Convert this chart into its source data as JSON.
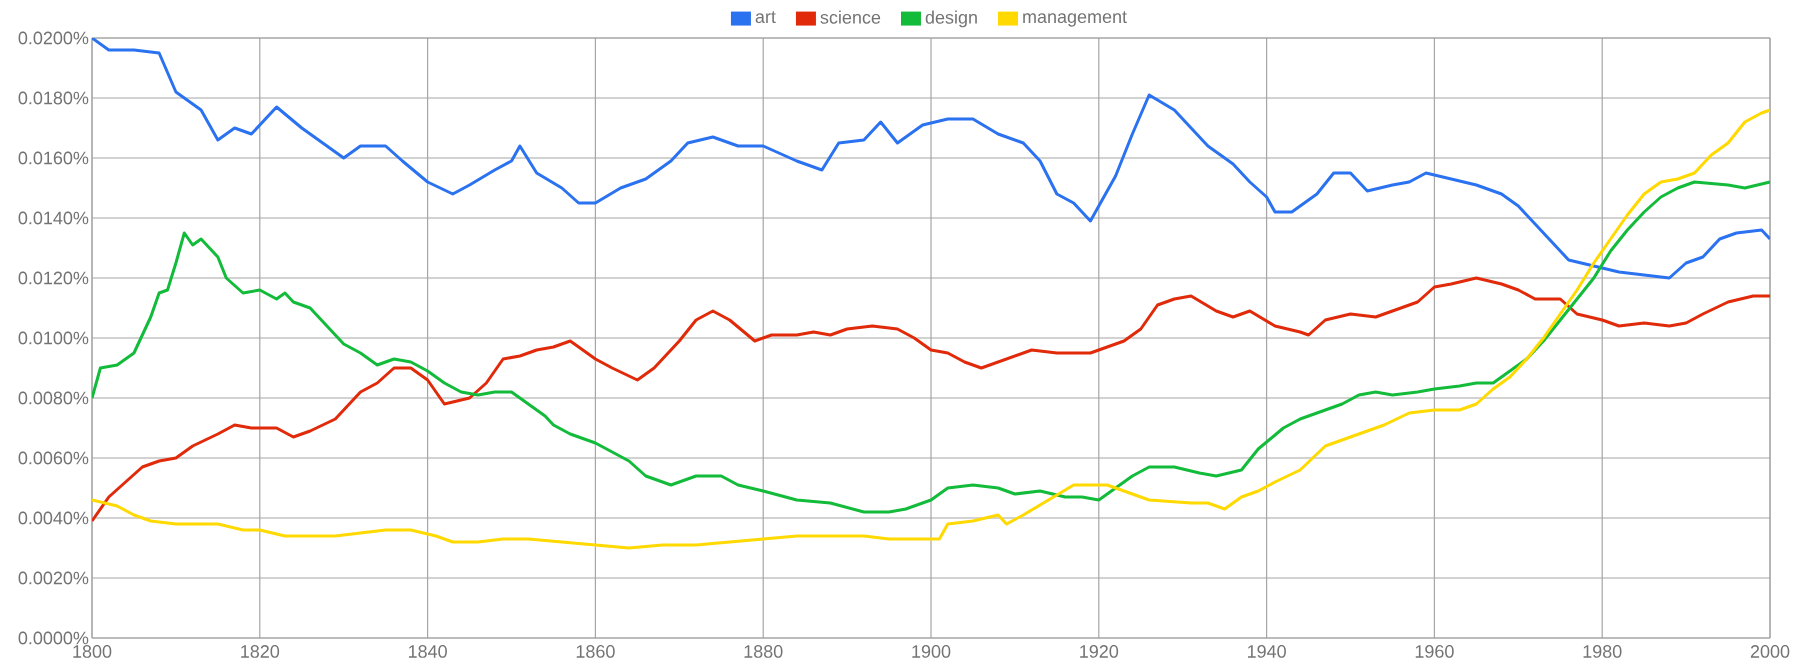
{
  "chart_data": {
    "type": "line",
    "legend": "top",
    "grid": true,
    "marker": "none",
    "line_style": "solid",
    "xlim": [
      1800,
      2000
    ],
    "ylim": [
      0,
      0.02
    ],
    "xticks": [
      1800,
      1820,
      1840,
      1860,
      1880,
      1900,
      1920,
      1940,
      1960,
      1980,
      2000
    ],
    "yticks": [
      {
        "value": 0,
        "label": "0.0000%"
      },
      {
        "value": 0.002,
        "label": "0.0020%"
      },
      {
        "value": 0.004,
        "label": "0.0040%"
      },
      {
        "value": 0.006,
        "label": "0.0060%"
      },
      {
        "value": 0.008,
        "label": "0.0080%"
      },
      {
        "value": 0.01,
        "label": "0.0100%"
      },
      {
        "value": 0.012,
        "label": "0.0120%"
      },
      {
        "value": 0.014,
        "label": "0.0140%"
      },
      {
        "value": 0.016,
        "label": "0.0160%"
      },
      {
        "value": 0.018,
        "label": "0.0180%"
      },
      {
        "value": 0.02,
        "label": "0.0200%"
      }
    ],
    "series": [
      {
        "name": "art",
        "color": "#2a72f0",
        "x": [
          1800,
          1802,
          1805,
          1808,
          1810,
          1813,
          1815,
          1817,
          1819,
          1822,
          1825,
          1828,
          1830,
          1832,
          1835,
          1837,
          1840,
          1843,
          1845,
          1848,
          1850,
          1851,
          1853,
          1856,
          1858,
          1860,
          1863,
          1866,
          1869,
          1871,
          1874,
          1877,
          1880,
          1884,
          1887,
          1889,
          1892,
          1894,
          1896,
          1899,
          1902,
          1905,
          1908,
          1911,
          1913,
          1915,
          1917,
          1919,
          1922,
          1924,
          1926,
          1929,
          1931,
          1933,
          1936,
          1938,
          1940,
          1941,
          1943,
          1946,
          1948,
          1950,
          1952,
          1955,
          1957,
          1959,
          1962,
          1965,
          1968,
          1970,
          1972,
          1974,
          1976,
          1979,
          1982,
          1985,
          1988,
          1990,
          1992,
          1994,
          1996,
          1999,
          2000
        ],
        "values": [
          0.02,
          0.0196,
          0.0196,
          0.0195,
          0.0182,
          0.0176,
          0.0166,
          0.017,
          0.0168,
          0.0177,
          0.017,
          0.0164,
          0.016,
          0.0164,
          0.0164,
          0.0159,
          0.0152,
          0.0148,
          0.0151,
          0.0156,
          0.0159,
          0.0164,
          0.0155,
          0.015,
          0.0145,
          0.0145,
          0.015,
          0.0153,
          0.0159,
          0.0165,
          0.0167,
          0.0164,
          0.0164,
          0.0159,
          0.0156,
          0.0165,
          0.0166,
          0.0172,
          0.0165,
          0.0171,
          0.0173,
          0.0173,
          0.0168,
          0.0165,
          0.0159,
          0.0148,
          0.0145,
          0.0139,
          0.0154,
          0.0168,
          0.0181,
          0.0176,
          0.017,
          0.0164,
          0.0158,
          0.0152,
          0.0147,
          0.0142,
          0.0142,
          0.0148,
          0.0155,
          0.0155,
          0.0149,
          0.0151,
          0.0152,
          0.0155,
          0.0153,
          0.0151,
          0.0148,
          0.0144,
          0.0138,
          0.0132,
          0.0126,
          0.0124,
          0.0122,
          0.0121,
          0.012,
          0.0125,
          0.0127,
          0.0133,
          0.0135,
          0.0136,
          0.0133
        ]
      },
      {
        "name": "science",
        "color": "#e02a0a",
        "x": [
          1800,
          1802,
          1804,
          1806,
          1808,
          1810,
          1812,
          1815,
          1817,
          1819,
          1822,
          1824,
          1826,
          1829,
          1832,
          1834,
          1836,
          1838,
          1840,
          1842,
          1845,
          1847,
          1849,
          1851,
          1853,
          1855,
          1857,
          1860,
          1862,
          1865,
          1867,
          1870,
          1872,
          1874,
          1876,
          1879,
          1881,
          1884,
          1886,
          1888,
          1890,
          1893,
          1896,
          1898,
          1900,
          1902,
          1904,
          1906,
          1909,
          1912,
          1915,
          1917,
          1919,
          1921,
          1923,
          1925,
          1927,
          1929,
          1931,
          1934,
          1936,
          1938,
          1941,
          1944,
          1945,
          1947,
          1950,
          1953,
          1955,
          1958,
          1960,
          1962,
          1965,
          1968,
          1970,
          1972,
          1975,
          1977,
          1980,
          1982,
          1985,
          1988,
          1990,
          1992,
          1995,
          1998,
          2000
        ],
        "values": [
          0.0039,
          0.0047,
          0.0052,
          0.0057,
          0.0059,
          0.006,
          0.0064,
          0.0068,
          0.0071,
          0.007,
          0.007,
          0.0067,
          0.0069,
          0.0073,
          0.0082,
          0.0085,
          0.009,
          0.009,
          0.0086,
          0.0078,
          0.008,
          0.0085,
          0.0093,
          0.0094,
          0.0096,
          0.0097,
          0.0099,
          0.0093,
          0.009,
          0.0086,
          0.009,
          0.0099,
          0.0106,
          0.0109,
          0.0106,
          0.0099,
          0.0101,
          0.0101,
          0.0102,
          0.0101,
          0.0103,
          0.0104,
          0.0103,
          0.01,
          0.0096,
          0.0095,
          0.0092,
          0.009,
          0.0093,
          0.0096,
          0.0095,
          0.0095,
          0.0095,
          0.0097,
          0.0099,
          0.0103,
          0.0111,
          0.0113,
          0.0114,
          0.0109,
          0.0107,
          0.0109,
          0.0104,
          0.0102,
          0.0101,
          0.0106,
          0.0108,
          0.0107,
          0.0109,
          0.0112,
          0.0117,
          0.0118,
          0.012,
          0.0118,
          0.0116,
          0.0113,
          0.0113,
          0.0108,
          0.0106,
          0.0104,
          0.0105,
          0.0104,
          0.0105,
          0.0108,
          0.0112,
          0.0114,
          0.0114
        ]
      },
      {
        "name": "design",
        "color": "#13bb3a",
        "x": [
          1800,
          1801,
          1803,
          1805,
          1807,
          1808,
          1809,
          1810,
          1811,
          1812,
          1813,
          1815,
          1816,
          1818,
          1820,
          1822,
          1823,
          1824,
          1826,
          1828,
          1830,
          1832,
          1834,
          1836,
          1838,
          1840,
          1842,
          1844,
          1846,
          1848,
          1850,
          1852,
          1854,
          1855,
          1857,
          1860,
          1862,
          1864,
          1866,
          1869,
          1872,
          1875,
          1877,
          1880,
          1884,
          1888,
          1892,
          1895,
          1897,
          1900,
          1902,
          1905,
          1908,
          1910,
          1913,
          1916,
          1918,
          1920,
          1922,
          1924,
          1926,
          1929,
          1932,
          1934,
          1937,
          1939,
          1942,
          1944,
          1946,
          1949,
          1951,
          1953,
          1955,
          1958,
          1960,
          1963,
          1965,
          1967,
          1969,
          1971,
          1973,
          1975,
          1977,
          1979,
          1981,
          1983,
          1985,
          1987,
          1989,
          1991,
          1995,
          1997,
          2000
        ],
        "values": [
          0.008,
          0.009,
          0.0091,
          0.0095,
          0.0107,
          0.0115,
          0.0116,
          0.0125,
          0.0135,
          0.0131,
          0.0133,
          0.0127,
          0.012,
          0.0115,
          0.0116,
          0.0113,
          0.0115,
          0.0112,
          0.011,
          0.0104,
          0.0098,
          0.0095,
          0.0091,
          0.0093,
          0.0092,
          0.0089,
          0.0085,
          0.0082,
          0.0081,
          0.0082,
          0.0082,
          0.0078,
          0.0074,
          0.0071,
          0.0068,
          0.0065,
          0.0062,
          0.0059,
          0.0054,
          0.0051,
          0.0054,
          0.0054,
          0.0051,
          0.0049,
          0.0046,
          0.0045,
          0.0042,
          0.0042,
          0.0043,
          0.0046,
          0.005,
          0.0051,
          0.005,
          0.0048,
          0.0049,
          0.0047,
          0.0047,
          0.0046,
          0.005,
          0.0054,
          0.0057,
          0.0057,
          0.0055,
          0.0054,
          0.0056,
          0.0063,
          0.007,
          0.0073,
          0.0075,
          0.0078,
          0.0081,
          0.0082,
          0.0081,
          0.0082,
          0.0083,
          0.0084,
          0.0085,
          0.0085,
          0.0089,
          0.0093,
          0.0099,
          0.0106,
          0.0113,
          0.012,
          0.0129,
          0.0136,
          0.0142,
          0.0147,
          0.015,
          0.0152,
          0.0151,
          0.015,
          0.0152
        ]
      },
      {
        "name": "management",
        "color": "#ffd900",
        "x": [
          1800,
          1803,
          1805,
          1807,
          1810,
          1812,
          1815,
          1818,
          1820,
          1823,
          1826,
          1829,
          1832,
          1835,
          1838,
          1841,
          1843,
          1846,
          1849,
          1852,
          1856,
          1860,
          1864,
          1868,
          1872,
          1876,
          1880,
          1884,
          1888,
          1892,
          1895,
          1898,
          1901,
          1902,
          1905,
          1908,
          1909,
          1911,
          1914,
          1917,
          1919,
          1921,
          1923,
          1926,
          1931,
          1933,
          1935,
          1937,
          1939,
          1941,
          1944,
          1947,
          1949,
          1951,
          1954,
          1957,
          1960,
          1963,
          1965,
          1967,
          1969,
          1971,
          1973,
          1975,
          1977,
          1979,
          1981,
          1983,
          1985,
          1987,
          1989,
          1991,
          1993,
          1995,
          1997,
          1999,
          2000
        ],
        "values": [
          0.0046,
          0.0044,
          0.0041,
          0.0039,
          0.0038,
          0.0038,
          0.0038,
          0.0036,
          0.0036,
          0.0034,
          0.0034,
          0.0034,
          0.0035,
          0.0036,
          0.0036,
          0.0034,
          0.0032,
          0.0032,
          0.0033,
          0.0033,
          0.0032,
          0.0031,
          0.003,
          0.0031,
          0.0031,
          0.0032,
          0.0033,
          0.0034,
          0.0034,
          0.0034,
          0.0033,
          0.0033,
          0.0033,
          0.0038,
          0.0039,
          0.0041,
          0.0038,
          0.0041,
          0.0046,
          0.0051,
          0.0051,
          0.0051,
          0.0049,
          0.0046,
          0.0045,
          0.0045,
          0.0043,
          0.0047,
          0.0049,
          0.0052,
          0.0056,
          0.0064,
          0.0066,
          0.0068,
          0.0071,
          0.0075,
          0.0076,
          0.0076,
          0.0078,
          0.0083,
          0.0087,
          0.0093,
          0.01,
          0.0108,
          0.0116,
          0.0125,
          0.0133,
          0.0141,
          0.0148,
          0.0152,
          0.0153,
          0.0155,
          0.0161,
          0.0165,
          0.0172,
          0.0175,
          0.0176
        ]
      }
    ]
  }
}
